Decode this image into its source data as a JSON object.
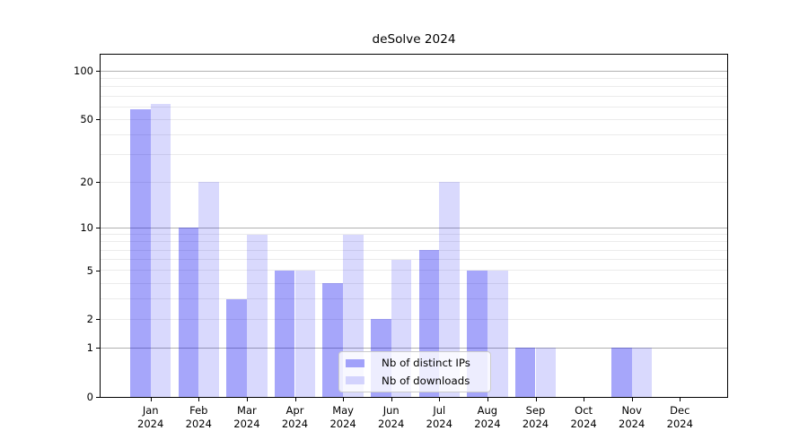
{
  "chart_data": {
    "type": "bar",
    "title": "deSolve 2024",
    "yscale": "log1p",
    "background_color": "#ffffff",
    "categories": [
      "Jan",
      "Feb",
      "Mar",
      "Apr",
      "May",
      "Jun",
      "Jul",
      "Aug",
      "Sep",
      "Oct",
      "Nov",
      "Dec"
    ],
    "x_year_line": "2024",
    "series": [
      {
        "name": "Nb of distinct IPs",
        "color": "rgba(0,0,240,0.35)",
        "values": [
          58,
          10,
          3,
          5,
          4,
          2,
          7,
          5,
          1,
          0,
          1,
          0
        ]
      },
      {
        "name": "Nb of downloads",
        "color": "rgba(0,0,240,0.15)",
        "values": [
          62,
          20,
          9,
          5,
          9,
          6,
          20,
          5,
          1,
          0,
          1,
          0
        ]
      }
    ],
    "yticks": [
      0,
      1,
      2,
      5,
      10,
      20,
      50,
      100
    ],
    "ylim": [
      0,
      126
    ],
    "grid_major": [
      1,
      10,
      100
    ],
    "grid_minor": [
      2,
      3,
      4,
      5,
      6,
      7,
      8,
      9,
      20,
      30,
      40,
      50,
      60,
      70,
      80,
      90
    ],
    "grid_major_color": "#b0b0b0",
    "grid_minor_color": "#ebebeb",
    "legend_position": "lower center"
  }
}
